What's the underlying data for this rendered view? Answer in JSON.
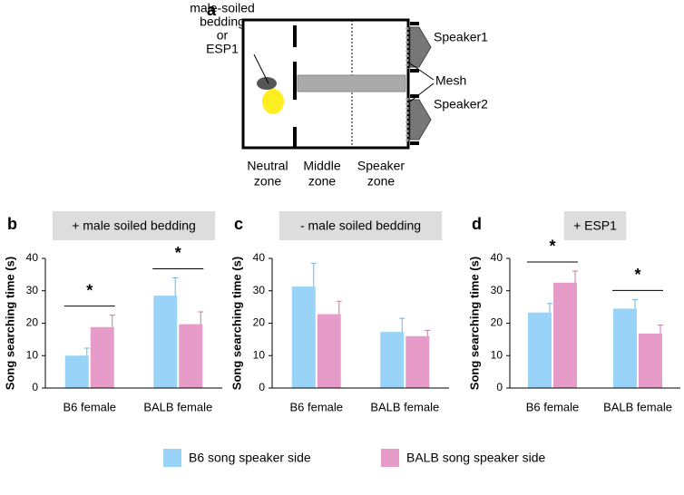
{
  "diagram": {
    "panel": "a",
    "bedding_label": [
      "male-soiled",
      "bedding",
      "or",
      "ESP1"
    ],
    "speaker1": "Speaker1",
    "speaker2": "Speaker2",
    "mesh": "Mesh",
    "zones": [
      [
        "Neutral",
        "zone"
      ],
      [
        "Middle",
        "zone"
      ],
      [
        "Speaker",
        "zone"
      ]
    ]
  },
  "chart_data": [
    {
      "type": "bar",
      "panel": "b",
      "title": "+ male soiled bedding",
      "ylabel": "Song searching time (s)",
      "categories": [
        "B6 female",
        "BALB female"
      ],
      "series": [
        {
          "name": "B6 song speaker side",
          "color": "#99d3f7",
          "values": [
            10,
            28.5
          ],
          "errors": [
            2.3,
            5.5
          ]
        },
        {
          "name": "BALB song speaker side",
          "color": "#e79bc8",
          "values": [
            18.8,
            19.7
          ],
          "errors": [
            3.7,
            3.8
          ]
        }
      ],
      "ylim": [
        0,
        40
      ],
      "yticks": [
        0,
        10,
        20,
        30,
        40
      ],
      "annotations": [
        "*",
        "*"
      ]
    },
    {
      "type": "bar",
      "panel": "c",
      "title": "- male soiled bedding",
      "ylabel": "Song searching time (s)",
      "categories": [
        "B6 female",
        "BALB female"
      ],
      "series": [
        {
          "color": "#99d3f7",
          "values": [
            31.3,
            17.3
          ],
          "errors": [
            7.2,
            4.2
          ]
        },
        {
          "color": "#e79bc8",
          "values": [
            22.8,
            16
          ],
          "errors": [
            4,
            1.8
          ]
        }
      ],
      "ylim": [
        0,
        40
      ],
      "yticks": [
        0,
        10,
        20,
        30,
        40
      ]
    },
    {
      "type": "bar",
      "panel": "d",
      "title": "+ ESP1",
      "ylabel": "Song searching time (s)",
      "categories": [
        "B6 female",
        "BALB female"
      ],
      "series": [
        {
          "color": "#99d3f7",
          "values": [
            23.3,
            24.5
          ],
          "errors": [
            2.8,
            2.8
          ]
        },
        {
          "color": "#e79bc8",
          "values": [
            32.5,
            16.8
          ],
          "errors": [
            3.6,
            2.6
          ]
        }
      ],
      "ylim": [
        0,
        40
      ],
      "yticks": [
        0,
        10,
        20,
        30,
        40
      ],
      "annotations": [
        "*",
        "*"
      ]
    }
  ]
}
